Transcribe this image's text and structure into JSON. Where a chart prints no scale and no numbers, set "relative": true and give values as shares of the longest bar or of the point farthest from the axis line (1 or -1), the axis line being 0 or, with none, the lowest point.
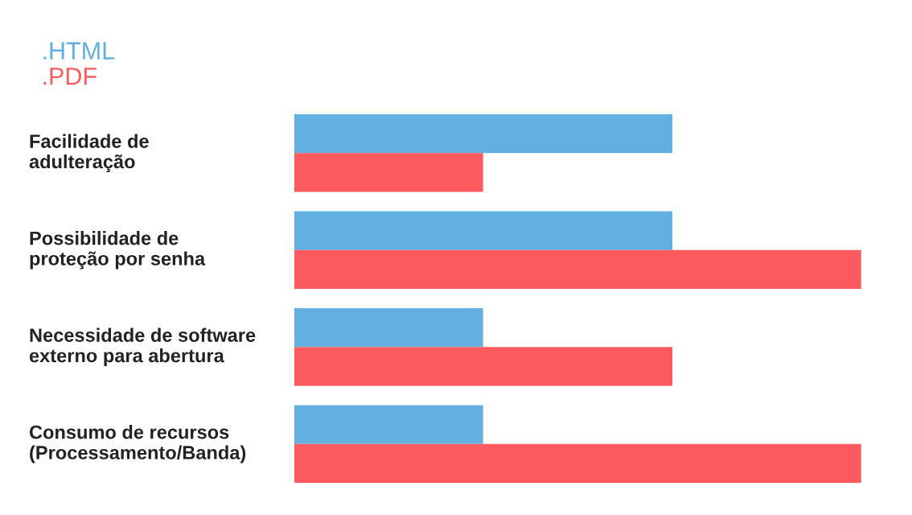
{
  "chart_data": {
    "type": "bar",
    "orientation": "horizontal",
    "relative": true,
    "categories": [
      "Facilidade de\nadulteração",
      "Possibilidade de\nproteção por senha",
      "Necessidade de software\nexterno para abertura",
      "Consumo de recursos\n(Processamento/Banda)"
    ],
    "series": [
      {
        "name": ".HTML",
        "color": "#62b0df",
        "values": [
          0.667,
          0.667,
          0.333,
          0.333
        ]
      },
      {
        "name": ".PDF",
        "color": "#fc5a5f",
        "values": [
          0.333,
          1,
          0.667,
          1
        ]
      }
    ],
    "legend": "top left"
  }
}
